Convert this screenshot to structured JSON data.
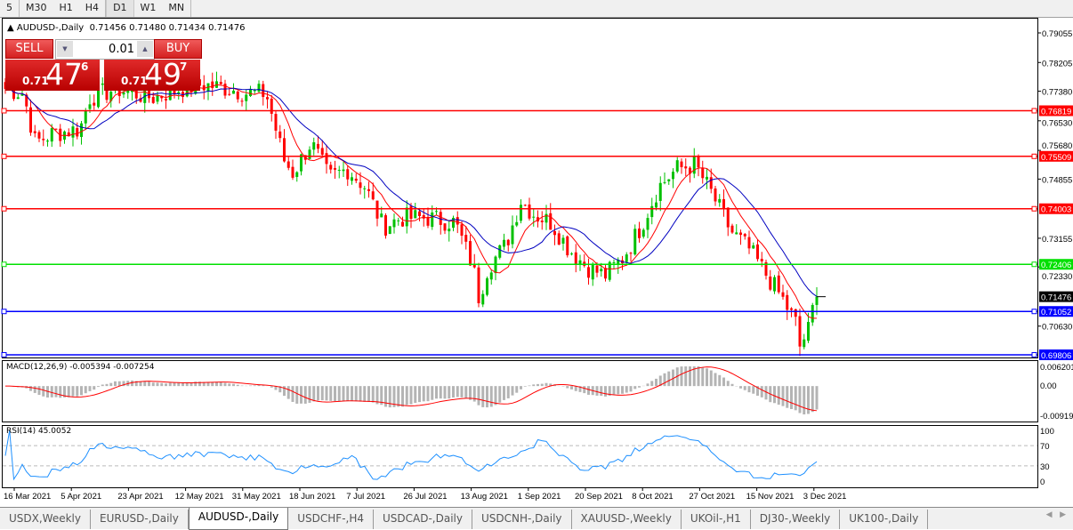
{
  "toolbar": {
    "timeframes": [
      {
        "label": "5"
      },
      {
        "label": "M30"
      },
      {
        "label": "H1"
      },
      {
        "label": "H4"
      },
      {
        "label": "D1",
        "active": true
      },
      {
        "label": "W1"
      },
      {
        "label": "MN"
      }
    ]
  },
  "chart": {
    "title": "AUDUSD-,Daily",
    "ohlc": "0.71456 0.71480 0.71434 0.71476",
    "current_price": "0.71476",
    "price_axis": [
      "0.79055",
      "0.78205",
      "0.77380",
      "0.76530",
      "0.75680",
      "0.74855",
      "0.73155",
      "0.72330",
      "0.70630"
    ],
    "hlines": [
      {
        "price": "0.76819",
        "color": "#ff0000"
      },
      {
        "price": "0.75509",
        "color": "#ff0000"
      },
      {
        "price": "0.74003",
        "color": "#ff0000"
      },
      {
        "price": "0.72406",
        "color": "#00e000"
      },
      {
        "price": "0.71052",
        "color": "#0000ff"
      },
      {
        "price": "0.69806",
        "color": "#0000ff"
      }
    ],
    "date_axis": [
      "16 Mar 2021",
      "5 Apr 2021",
      "23 Apr 2021",
      "12 May 2021",
      "31 May 2021",
      "18 Jun 2021",
      "7 Jul 2021",
      "26 Jul 2021",
      "13 Aug 2021",
      "1 Sep 2021",
      "20 Sep 2021",
      "8 Oct 2021",
      "27 Oct 2021",
      "15 Nov 2021",
      "3 Dec 2021"
    ],
    "colors": {
      "bull": "#00c000",
      "bear": "#ff0000",
      "ma_fast": "#ff0000",
      "ma_slow": "#0000c0"
    },
    "price_path": [
      [
        "2021-03-13",
        0.7745
      ],
      [
        "2021-03-19",
        0.7732
      ],
      [
        "2021-03-23",
        0.7591
      ],
      [
        "2021-03-29",
        0.7617
      ],
      [
        "2021-04-07",
        0.763
      ],
      [
        "2021-04-10",
        0.7719
      ],
      [
        "2021-04-19",
        0.7745
      ],
      [
        "2021-05-01",
        0.7719
      ],
      [
        "2021-05-10",
        0.7745
      ],
      [
        "2021-05-18",
        0.7757
      ],
      [
        "2021-05-27",
        0.7745
      ],
      [
        "2021-06-02",
        0.7732
      ],
      [
        "2021-06-08",
        0.7732
      ],
      [
        "2021-06-14",
        0.754
      ],
      [
        "2021-06-17",
        0.7502
      ],
      [
        "2021-06-23",
        0.7591
      ],
      [
        "2021-06-29",
        0.7489
      ],
      [
        "2021-07-05",
        0.7515
      ],
      [
        "2021-07-11",
        0.7464
      ],
      [
        "2021-07-17",
        0.7349
      ],
      [
        "2021-07-23",
        0.7374
      ],
      [
        "2021-08-01",
        0.7374
      ],
      [
        "2021-08-10",
        0.7361
      ],
      [
        "2021-08-16",
        0.7234
      ],
      [
        "2021-08-18",
        0.7144
      ],
      [
        "2021-08-21",
        0.7234
      ],
      [
        "2021-08-27",
        0.7297
      ],
      [
        "2021-09-01",
        0.7425
      ],
      [
        "2021-09-05",
        0.7387
      ],
      [
        "2021-09-11",
        0.7361
      ],
      [
        "2021-09-17",
        0.7285
      ],
      [
        "2021-09-23",
        0.7234
      ],
      [
        "2021-09-29",
        0.7208
      ],
      [
        "2021-10-05",
        0.7259
      ],
      [
        "2021-10-11",
        0.7349
      ],
      [
        "2021-10-17",
        0.7464
      ],
      [
        "2021-10-23",
        0.7515
      ],
      [
        "2021-10-29",
        0.7527
      ],
      [
        "2021-11-04",
        0.7438
      ],
      [
        "2021-11-10",
        0.7336
      ],
      [
        "2021-11-16",
        0.7285
      ],
      [
        "2021-11-21",
        0.7221
      ],
      [
        "2021-11-27",
        0.7144
      ],
      [
        "2021-12-02",
        0.7067
      ],
      [
        "2021-12-03",
        0.7004
      ],
      [
        "2021-12-06",
        0.7055
      ],
      [
        "2021-12-08",
        0.7144
      ],
      [
        "2021-12-10",
        0.71476
      ]
    ]
  },
  "trade": {
    "sell_label": "SELL",
    "buy_label": "BUY",
    "lot": "0.01",
    "sell": {
      "prefix": "0.71",
      "big": "47",
      "sup": "6"
    },
    "buy": {
      "prefix": "0.71",
      "big": "49",
      "sup": "7"
    }
  },
  "macd": {
    "label": "MACD(12,26,9) -0.005394 -0.007254",
    "axis": [
      "0.006201",
      "0.00",
      "-0.009197"
    ],
    "colors": {
      "histogram": "#b4b4b4",
      "signal": "#ff0000"
    }
  },
  "rsi": {
    "label": "RSI(14) 45.0052",
    "axis": [
      "100",
      "70",
      "30",
      "0"
    ],
    "color": "#1e90ff"
  },
  "tabs": [
    {
      "label": "USDX,Weekly"
    },
    {
      "label": "EURUSD-,Daily"
    },
    {
      "label": "AUDUSD-,Daily",
      "active": true
    },
    {
      "label": "USDCHF-,H4"
    },
    {
      "label": "USDCAD-,Daily"
    },
    {
      "label": "USDCNH-,Daily"
    },
    {
      "label": "XAUUSD-,Weekly"
    },
    {
      "label": "UKOil-,H1"
    },
    {
      "label": "DJ30-,Weekly"
    },
    {
      "label": "UK100-,Daily"
    }
  ],
  "tab_nav": {
    "prev_icon": "triangle-left",
    "next_icon": "triangle-right"
  }
}
